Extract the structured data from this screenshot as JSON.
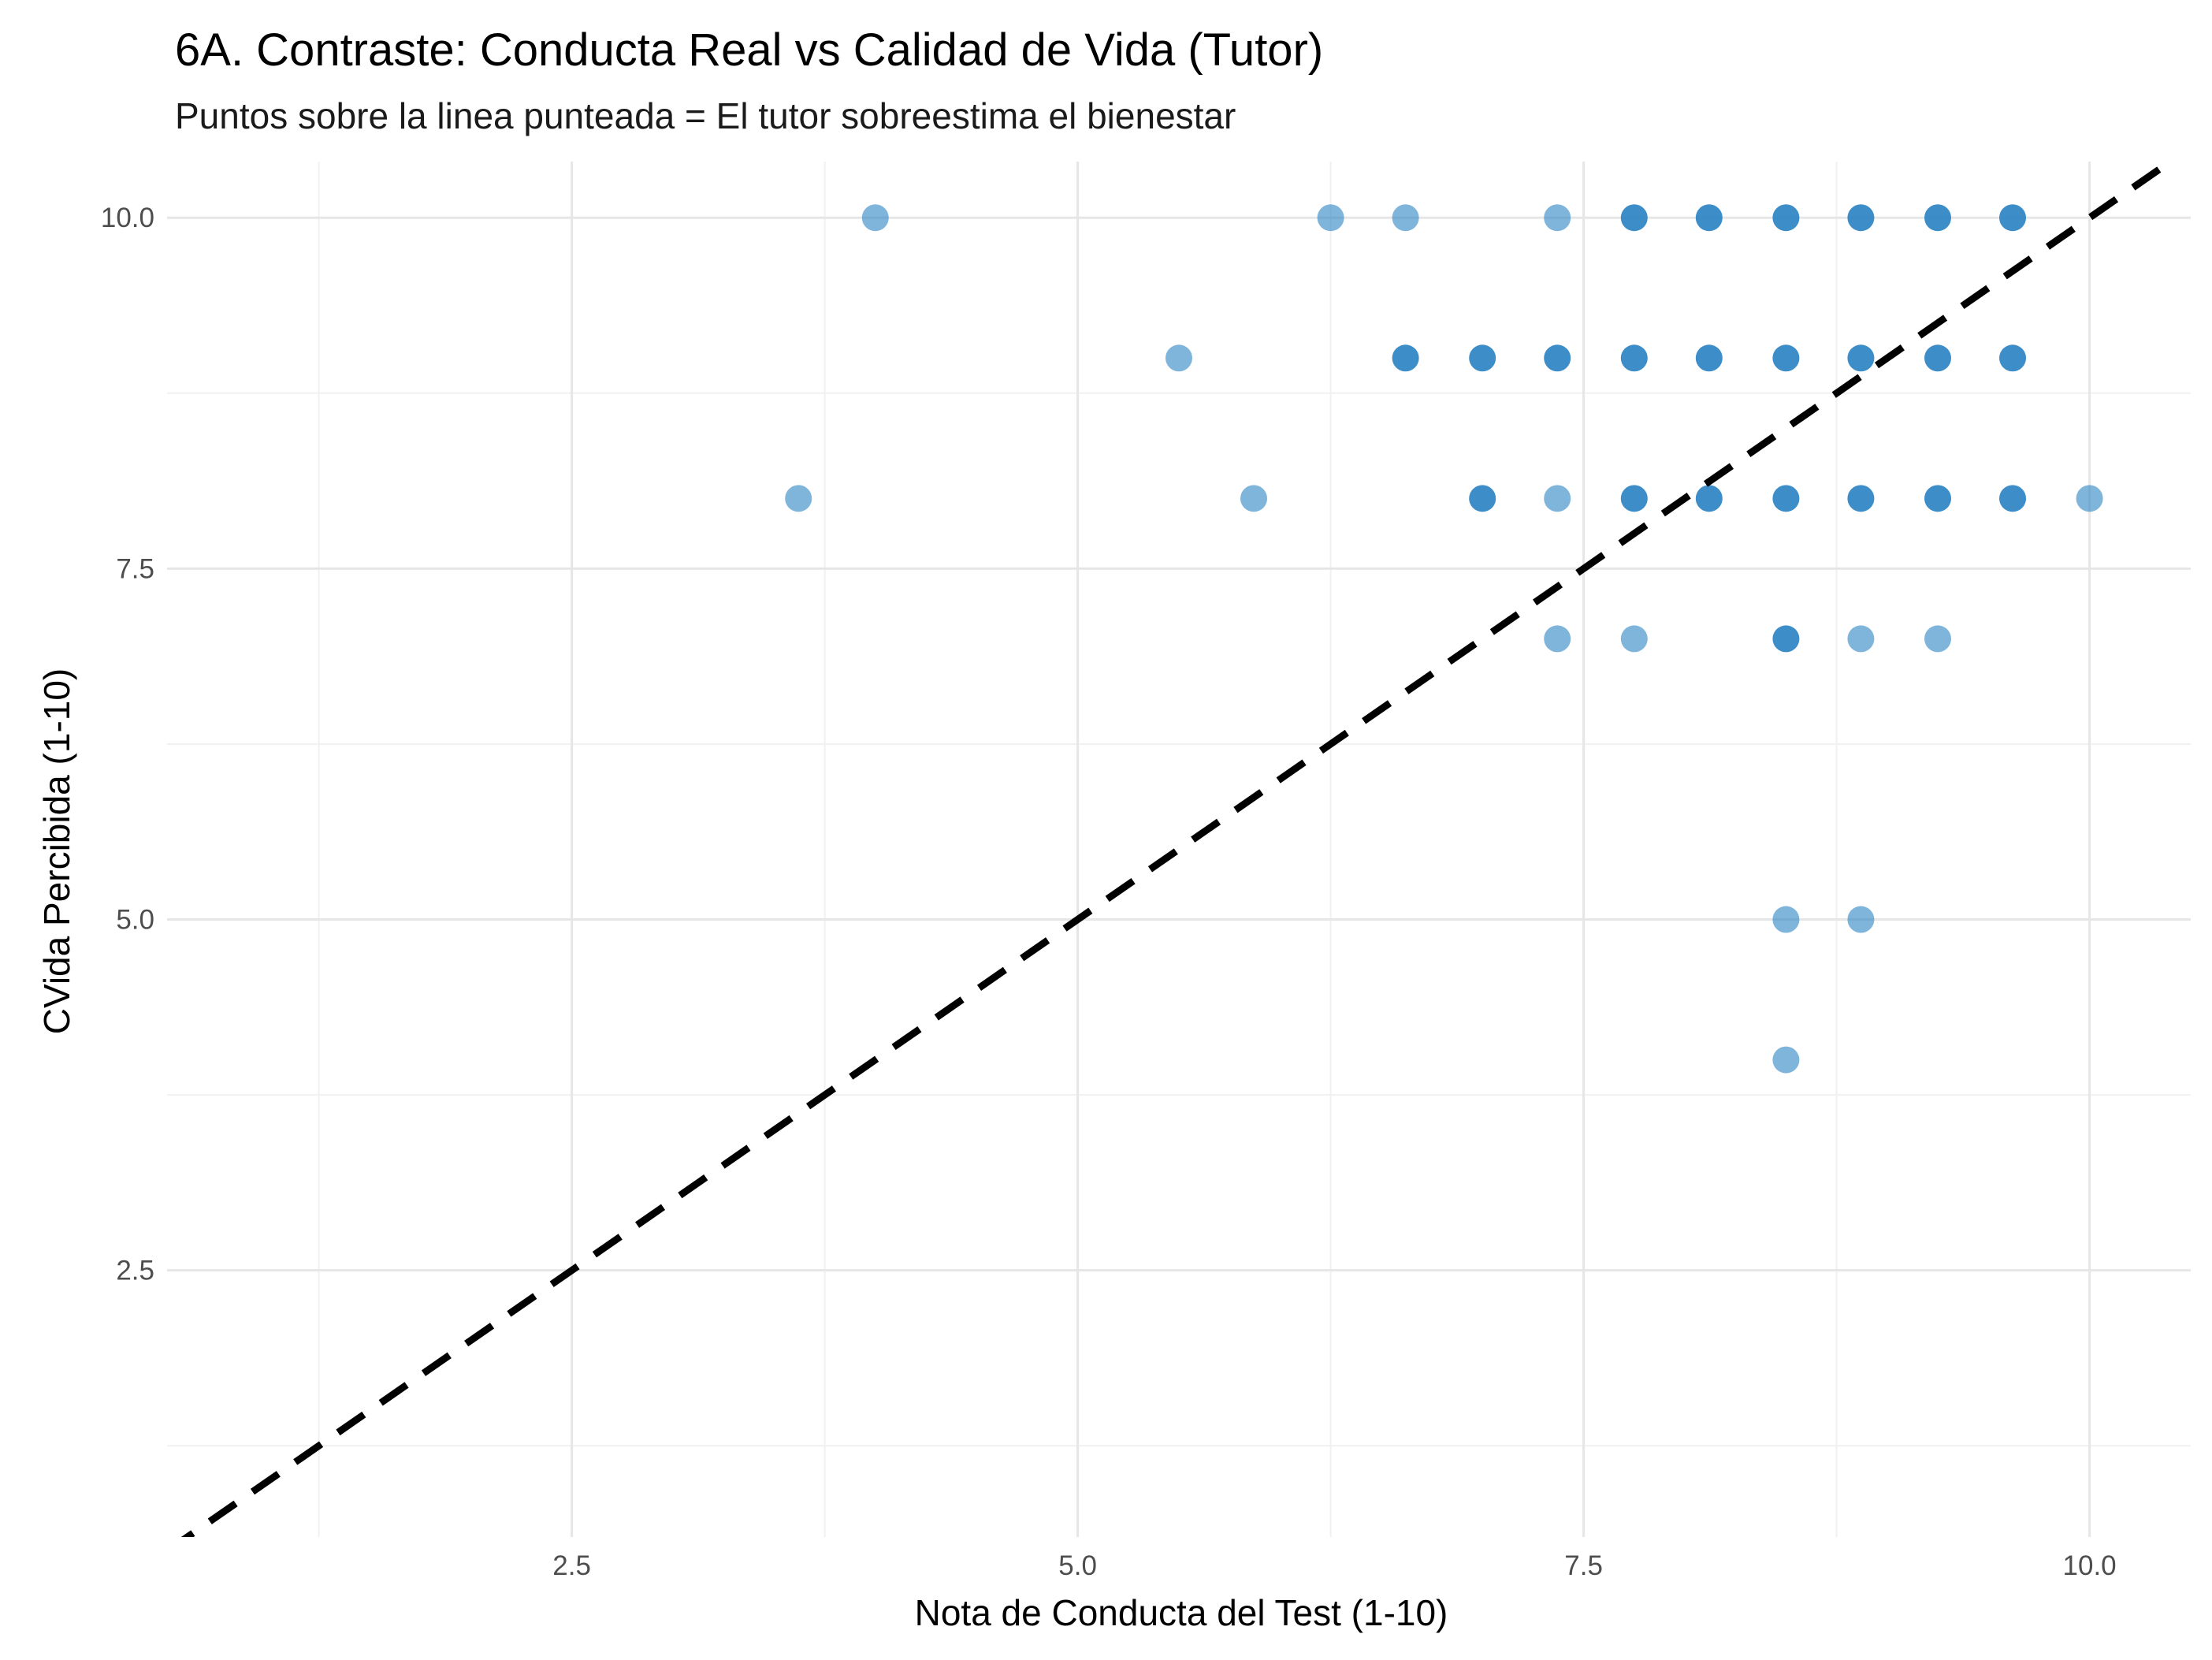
{
  "chart_data": {
    "type": "scatter",
    "title": "6A. Contraste: Conducta Real vs Calidad de Vida (Tutor)",
    "subtitle": "Puntos sobre la linea punteada = El tutor sobreestima el bienestar",
    "xlabel": "Nota de Conducta del Test (1-10)",
    "ylabel": "CVida Percibida (1-10)",
    "xlim": [
      0.5,
      10.5
    ],
    "ylim": [
      0.6,
      10.4
    ],
    "xticks": [
      2.5,
      5.0,
      7.5,
      10.0
    ],
    "xtick_labels": [
      "2.5",
      "5.0",
      "7.5",
      "10.0"
    ],
    "yticks": [
      2.5,
      5.0,
      7.5,
      10.0
    ],
    "ytick_labels": [
      "2.5",
      "5.0",
      "7.5",
      "10.0"
    ],
    "grid": true,
    "point_color": "#2b83c3",
    "reference_line": {
      "style": "dashed",
      "color": "#000000",
      "slope": 1,
      "intercept": 0
    },
    "points": [
      {
        "x": 4.0,
        "y": 10,
        "dense": false
      },
      {
        "x": 6.25,
        "y": 10,
        "dense": false
      },
      {
        "x": 6.62,
        "y": 10,
        "dense": false
      },
      {
        "x": 7.37,
        "y": 10,
        "dense": false
      },
      {
        "x": 7.75,
        "y": 10,
        "dense": true
      },
      {
        "x": 8.12,
        "y": 10,
        "dense": true
      },
      {
        "x": 8.5,
        "y": 10,
        "dense": true
      },
      {
        "x": 8.87,
        "y": 10,
        "dense": true
      },
      {
        "x": 9.25,
        "y": 10,
        "dense": true
      },
      {
        "x": 9.62,
        "y": 10,
        "dense": true
      },
      {
        "x": 5.5,
        "y": 9,
        "dense": false
      },
      {
        "x": 6.62,
        "y": 9,
        "dense": true
      },
      {
        "x": 7.0,
        "y": 9,
        "dense": true
      },
      {
        "x": 7.37,
        "y": 9,
        "dense": true
      },
      {
        "x": 7.75,
        "y": 9,
        "dense": true
      },
      {
        "x": 8.12,
        "y": 9,
        "dense": true
      },
      {
        "x": 8.5,
        "y": 9,
        "dense": true
      },
      {
        "x": 8.87,
        "y": 9,
        "dense": true
      },
      {
        "x": 9.25,
        "y": 9,
        "dense": true
      },
      {
        "x": 9.62,
        "y": 9,
        "dense": true
      },
      {
        "x": 3.62,
        "y": 8,
        "dense": false
      },
      {
        "x": 5.87,
        "y": 8,
        "dense": false
      },
      {
        "x": 7.0,
        "y": 8,
        "dense": true
      },
      {
        "x": 7.37,
        "y": 8,
        "dense": false
      },
      {
        "x": 7.75,
        "y": 8,
        "dense": true
      },
      {
        "x": 8.12,
        "y": 8,
        "dense": true
      },
      {
        "x": 8.5,
        "y": 8,
        "dense": true
      },
      {
        "x": 8.87,
        "y": 8,
        "dense": true
      },
      {
        "x": 9.25,
        "y": 8,
        "dense": true
      },
      {
        "x": 9.62,
        "y": 8,
        "dense": true
      },
      {
        "x": 10.0,
        "y": 8,
        "dense": false
      },
      {
        "x": 7.37,
        "y": 7,
        "dense": false
      },
      {
        "x": 7.75,
        "y": 7,
        "dense": false
      },
      {
        "x": 8.5,
        "y": 7,
        "dense": true
      },
      {
        "x": 8.87,
        "y": 7,
        "dense": false
      },
      {
        "x": 9.25,
        "y": 7,
        "dense": false
      },
      {
        "x": 8.5,
        "y": 5,
        "dense": false
      },
      {
        "x": 8.87,
        "y": 5,
        "dense": false
      },
      {
        "x": 8.5,
        "y": 4,
        "dense": false
      }
    ]
  }
}
